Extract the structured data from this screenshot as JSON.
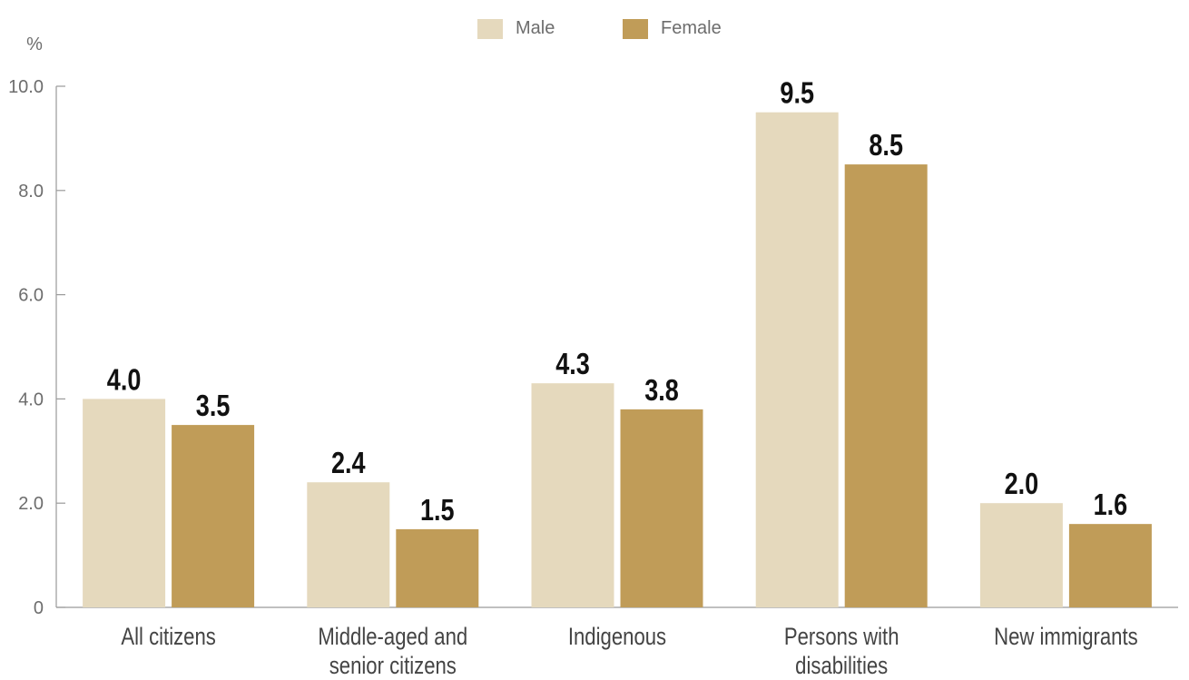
{
  "chart_data": {
    "type": "bar",
    "ylabel": "%",
    "ylim": [
      0,
      10
    ],
    "yticks": [
      {
        "value": 0,
        "label": "0"
      },
      {
        "value": 2,
        "label": "2.0"
      },
      {
        "value": 4,
        "label": "4.0"
      },
      {
        "value": 6,
        "label": "6.0"
      },
      {
        "value": 8,
        "label": "8.0"
      },
      {
        "value": 10,
        "label": "10.0"
      }
    ],
    "categories": [
      [
        "All citizens"
      ],
      [
        "Middle-aged and",
        "senior citizens"
      ],
      [
        "Indigenous"
      ],
      [
        "Persons with",
        "disabilities"
      ],
      [
        "New immigrants"
      ]
    ],
    "series": [
      {
        "name": "Male",
        "color": "#e5d9bd",
        "values": [
          4.0,
          2.4,
          4.3,
          9.5,
          2.0
        ],
        "labels": [
          "4.0",
          "2.4",
          "4.3",
          "9.5",
          "2.0"
        ]
      },
      {
        "name": "Female",
        "color": "#c09c58",
        "values": [
          3.5,
          1.5,
          3.8,
          8.5,
          1.6
        ],
        "labels": [
          "3.5",
          "1.5",
          "3.8",
          "8.5",
          "1.6"
        ]
      }
    ],
    "legend_position": "top-center",
    "grid": false
  }
}
